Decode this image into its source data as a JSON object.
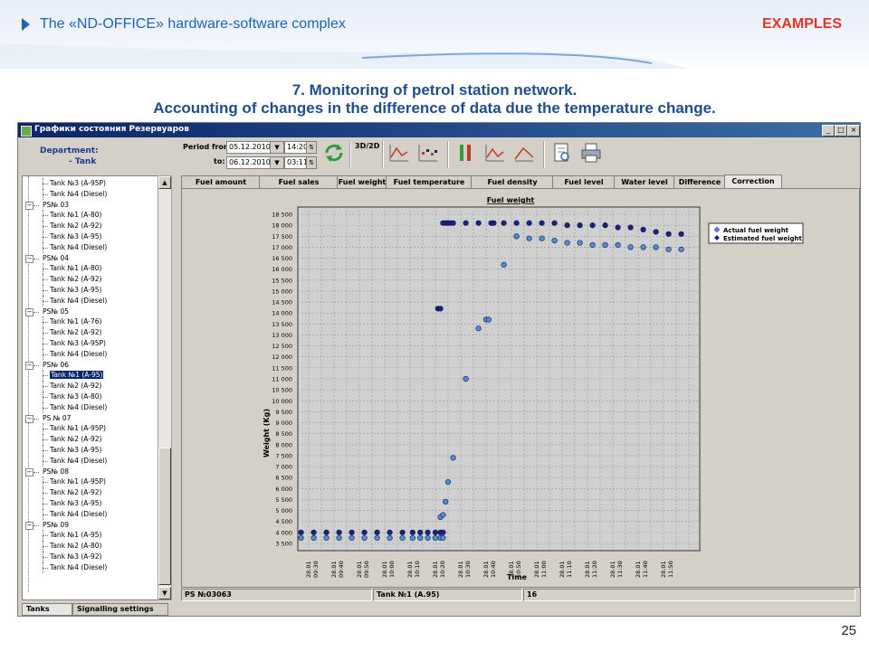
{
  "slide": {
    "header_title": "The «ND-OFFICE» hardware-software complex",
    "header_section": "EXAMPLES",
    "title_line1": "7. Monitoring of petrol station network.",
    "title_line2": "Accounting of changes in the difference of data due the temperature change.",
    "page_number": "25"
  },
  "window": {
    "title": "Графики состояния Резервуаров",
    "btn_min": "_",
    "btn_max": "□",
    "btn_close": "×"
  },
  "left_panel": {
    "department_label": "Department:",
    "department_value": "- Tank",
    "tree": [
      {
        "text": "Tank №3 (A-95P)",
        "level": 2
      },
      {
        "text": "Tank №4 (Diesel)",
        "level": 2
      },
      {
        "text": "PS№ 03",
        "level": 1
      },
      {
        "text": "Tank №1 (A-80)",
        "level": 2
      },
      {
        "text": "Tank №2 (A-92)",
        "level": 2
      },
      {
        "text": "Tank №3 (A-95)",
        "level": 2
      },
      {
        "text": "Tank №4 (Diesel)",
        "level": 2
      },
      {
        "text": "PS№ 04",
        "level": 1
      },
      {
        "text": "Tank №1 (A-80)",
        "level": 2
      },
      {
        "text": "Tank №2 (A-92)",
        "level": 2
      },
      {
        "text": "Tank №3 (A-95)",
        "level": 2
      },
      {
        "text": "Tank №4 (Diesel)",
        "level": 2
      },
      {
        "text": "PS№ 05",
        "level": 1
      },
      {
        "text": "Tank №1 (A-76)",
        "level": 2
      },
      {
        "text": "Tank №2 (A-92)",
        "level": 2
      },
      {
        "text": "Tank №3 (A-95P)",
        "level": 2
      },
      {
        "text": "Tank №4 (Diesel)",
        "level": 2
      },
      {
        "text": "PS№ 06",
        "level": 1
      },
      {
        "text": "Tank №1 (A-95)",
        "level": 2,
        "selected": true
      },
      {
        "text": "Tank №2 (A-92)",
        "level": 2
      },
      {
        "text": "Tank №3 (A-80)",
        "level": 2
      },
      {
        "text": "Tank №4 (Diesel)",
        "level": 2
      },
      {
        "text": "PS № 07",
        "level": 1
      },
      {
        "text": "Tank №1 (A-95P)",
        "level": 2
      },
      {
        "text": "Tank №2 (A-92)",
        "level": 2
      },
      {
        "text": "Tank №3 (A-95)",
        "level": 2
      },
      {
        "text": "Tank №4 (Diesel)",
        "level": 2
      },
      {
        "text": "PS№ 08",
        "level": 1
      },
      {
        "text": "Tank №1 (A-95P)",
        "level": 2
      },
      {
        "text": "Tank №2 (A-92)",
        "level": 2
      },
      {
        "text": "Tank №3 (A-95)",
        "level": 2
      },
      {
        "text": "Tank №4 (Diesel)",
        "level": 2
      },
      {
        "text": "PS№ 09",
        "level": 1
      },
      {
        "text": "Tank №1 (A-95)",
        "level": 2
      },
      {
        "text": "Tank №2 (A-80)",
        "level": 2
      },
      {
        "text": "Tank №3 (A-92)",
        "level": 2
      },
      {
        "text": "Tank №4 (Diesel)",
        "level": 2
      }
    ],
    "tab_tanks": "Tanks",
    "tab_signalling": "Signalling settings",
    "scroll_up": "▲",
    "scroll_down": "▼"
  },
  "toolbar": {
    "period_from_label": "Period from:",
    "to_label": "to:",
    "from_date": "05.12.2010",
    "from_time": "14:20",
    "to_date": "06.12.2010",
    "to_time": "03:11",
    "toggle_3d_2d": "3D/2D",
    "dropdown_arrow": "▼",
    "spin_arrows": "⇅",
    "icons": [
      "refresh-icon",
      "3d-2d-icon",
      "line-chart-icon",
      "scatter-chart-icon",
      "bars-icon",
      "line-chart-icon",
      "area-chart-icon",
      "preview-icon",
      "print-icon"
    ]
  },
  "tabs": [
    {
      "label": "Fuel amount"
    },
    {
      "label": "Fuel sales"
    },
    {
      "label": "Fuel weight"
    },
    {
      "label": "Fuel temperature"
    },
    {
      "label": "Fuel density"
    },
    {
      "label": "Fuel level"
    },
    {
      "label": "Water level"
    },
    {
      "label": "Difference"
    },
    {
      "label": "Correction",
      "active": true
    }
  ],
  "colors": {
    "actual": "#1a237e",
    "estimated": "#4a90d9",
    "accent_blue": "#1b63b5",
    "accent_red": "#e2342a"
  },
  "chart_data": {
    "type": "scatter",
    "title": "Fuel weight",
    "ylabel": "Weight (Kg)",
    "xlabel": "Time",
    "ylim": [
      3500,
      18500
    ],
    "yticks": [
      "3 500",
      "4 000",
      "4 500",
      "5 000",
      "5 500",
      "6 000",
      "6 500",
      "7 000",
      "7 500",
      "8 000",
      "8 500",
      "9 000",
      "9 500",
      "10 000",
      "10 500",
      "11 000",
      "11 500",
      "12 000",
      "12 500",
      "13 000",
      "13 500",
      "14 000",
      "14 500",
      "15 000",
      "15 500",
      "16 000",
      "16 500",
      "17 000",
      "17 500",
      "18 000",
      "18 500"
    ],
    "xticks": [
      "28.01 09:30",
      "28.01 09:40",
      "28.01 09:50",
      "28.01 10:00",
      "28.01 10:10",
      "28.01 10:20",
      "28.01 10:30",
      "28.01 10:40",
      "28.01 10:50",
      "28.01 11:00",
      "28.01 11:10",
      "28.01 11:20",
      "28.01 11:30",
      "28.01 11:40",
      "28.01 11:50"
    ],
    "xlim_minutes": [
      0,
      150
    ],
    "legend_position": "top-right",
    "grid": true,
    "series": [
      {
        "name": "Actual fuel weight",
        "points": [
          [
            -3,
            4000
          ],
          [
            2,
            4000
          ],
          [
            7,
            4000
          ],
          [
            12,
            4000
          ],
          [
            17,
            4000
          ],
          [
            22,
            4000
          ],
          [
            27,
            4000
          ],
          [
            32,
            4000
          ],
          [
            37,
            4000
          ],
          [
            41,
            4000
          ],
          [
            44,
            4000
          ],
          [
            47,
            4000
          ],
          [
            50,
            4000
          ],
          [
            52,
            4000
          ],
          [
            53,
            4000
          ],
          [
            51,
            14200
          ],
          [
            52,
            14200
          ],
          [
            53,
            18100
          ],
          [
            54,
            18100
          ],
          [
            55,
            18100
          ],
          [
            56,
            18100
          ],
          [
            57,
            18100
          ],
          [
            62,
            18100
          ],
          [
            67,
            18100
          ],
          [
            72,
            18100
          ],
          [
            73,
            18100
          ],
          [
            77,
            18100
          ],
          [
            82,
            18100
          ],
          [
            87,
            18100
          ],
          [
            92,
            18100
          ],
          [
            97,
            18100
          ],
          [
            102,
            18000
          ],
          [
            107,
            18000
          ],
          [
            112,
            18000
          ],
          [
            117,
            18000
          ],
          [
            122,
            17900
          ],
          [
            127,
            17900
          ],
          [
            132,
            17800
          ],
          [
            137,
            17700
          ],
          [
            142,
            17600
          ],
          [
            147,
            17600
          ]
        ]
      },
      {
        "name": "Estimated fuel weight",
        "points": [
          [
            -3,
            3750
          ],
          [
            2,
            3750
          ],
          [
            7,
            3750
          ],
          [
            12,
            3750
          ],
          [
            17,
            3750
          ],
          [
            22,
            3750
          ],
          [
            27,
            3750
          ],
          [
            32,
            3750
          ],
          [
            37,
            3750
          ],
          [
            41,
            3750
          ],
          [
            44,
            3750
          ],
          [
            47,
            3750
          ],
          [
            50,
            3750
          ],
          [
            52,
            3750
          ],
          [
            53,
            3750
          ],
          [
            52,
            4700
          ],
          [
            53,
            4800
          ],
          [
            54,
            5400
          ],
          [
            55,
            6300
          ],
          [
            57,
            7400
          ],
          [
            62,
            11000
          ],
          [
            67,
            13300
          ],
          [
            70,
            13700
          ],
          [
            71,
            13700
          ],
          [
            77,
            16200
          ],
          [
            82,
            17500
          ],
          [
            87,
            17400
          ],
          [
            92,
            17400
          ],
          [
            97,
            17300
          ],
          [
            102,
            17200
          ],
          [
            107,
            17200
          ],
          [
            112,
            17100
          ],
          [
            117,
            17100
          ],
          [
            122,
            17100
          ],
          [
            127,
            17000
          ],
          [
            132,
            17000
          ],
          [
            137,
            17000
          ],
          [
            142,
            16900
          ],
          [
            147,
            16900
          ]
        ]
      }
    ]
  },
  "status": {
    "ps": "PS №03063",
    "tank": "Tank №1 (A.95)",
    "count": "16"
  }
}
